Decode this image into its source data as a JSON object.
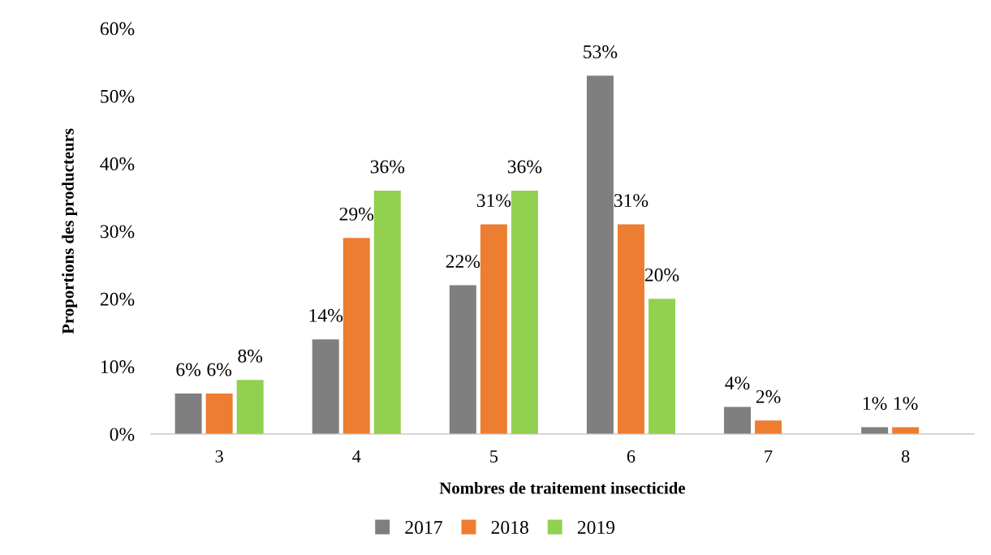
{
  "chart_data": {
    "type": "bar",
    "xlabel": "Nombres de traitement insecticide",
    "ylabel": "Proportions des producteurs",
    "categories": [
      "3",
      "4",
      "5",
      "6",
      "7",
      "8"
    ],
    "series": [
      {
        "name": "2017",
        "color": "#7f7f7f",
        "values": [
          6,
          14,
          22,
          53,
          4,
          1
        ],
        "value_labels": [
          "6%",
          "14%",
          "22%",
          "53%",
          "4%",
          "1%"
        ]
      },
      {
        "name": "2018",
        "color": "#ed7d31",
        "values": [
          6,
          29,
          31,
          31,
          2,
          1
        ],
        "value_labels": [
          "6%",
          "29%",
          "31%",
          "31%",
          "2%",
          "1%"
        ]
      },
      {
        "name": "2019",
        "color": "#92d050",
        "values": [
          8,
          36,
          36,
          20,
          null,
          null
        ],
        "value_labels": [
          "8%",
          "36%",
          "36%",
          "20%",
          null,
          null
        ]
      }
    ],
    "ylim": [
      0,
      60
    ],
    "yticks": [
      {
        "value": 0,
        "label": "0%"
      },
      {
        "value": 10,
        "label": "10%"
      },
      {
        "value": 20,
        "label": "20%"
      },
      {
        "value": 30,
        "label": "30%"
      },
      {
        "value": 40,
        "label": "40%"
      },
      {
        "value": 50,
        "label": "50%"
      },
      {
        "value": 60,
        "label": "60%"
      }
    ],
    "grid": false,
    "legend": "bottom"
  }
}
